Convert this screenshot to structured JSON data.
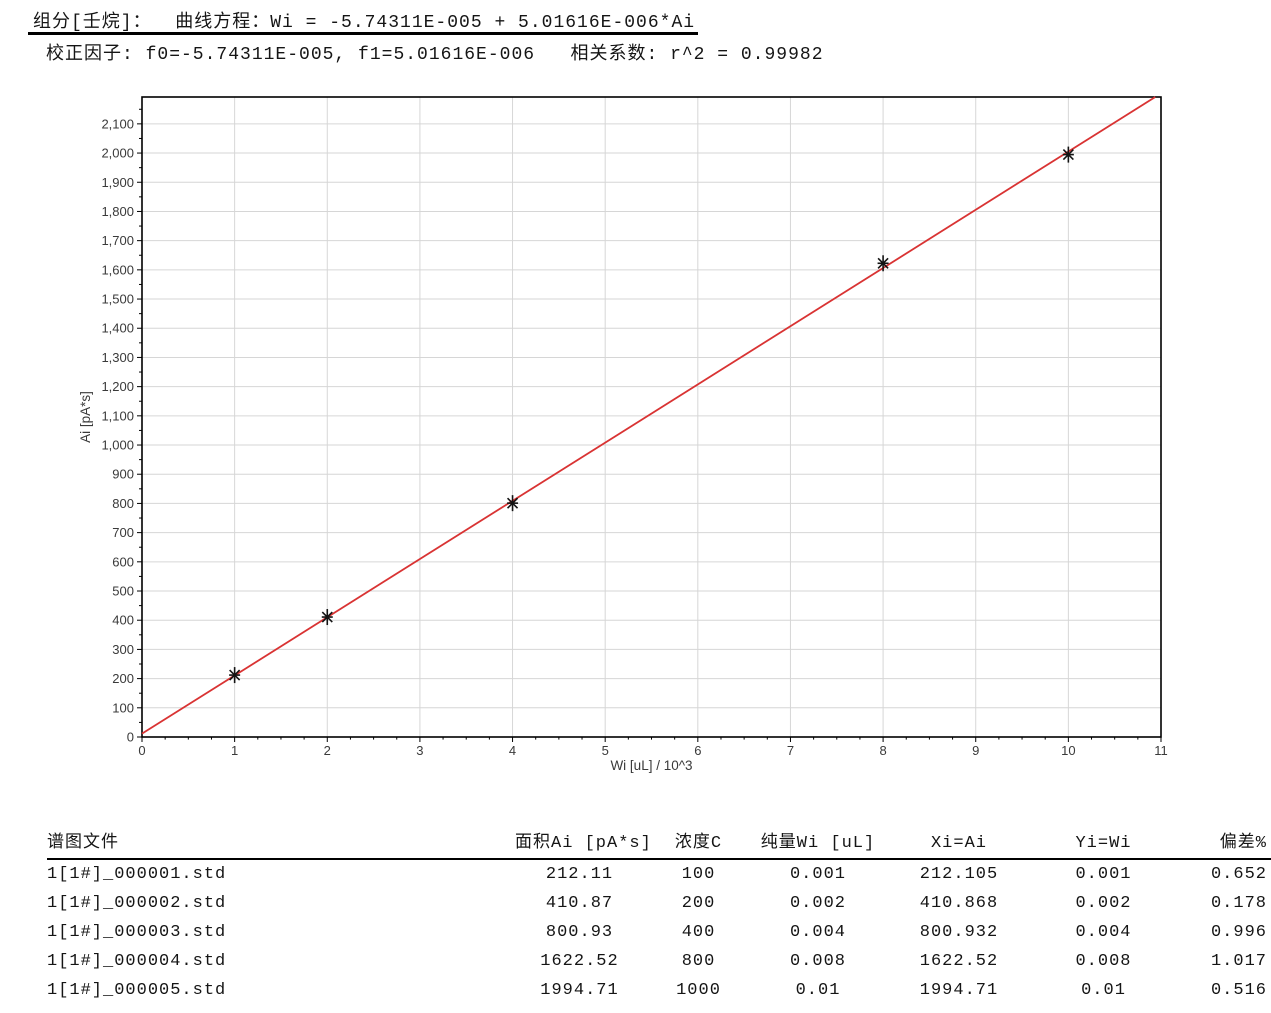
{
  "header": {
    "line1": "组分[壬烷]：  曲线方程：Wi = -5.74311E-005 + 5.01616E-006*Ai",
    "line2": "校正因子: f0=-5.74311E-005, f1=5.01616E-006   相关系数: r^2 = 0.99982"
  },
  "chart_data": {
    "type": "scatter",
    "title": "",
    "xlabel": "Wi [uL] / 10^3",
    "ylabel": "Ai [pA*s]",
    "xlim": [
      0,
      11
    ],
    "ylim": [
      0,
      2192
    ],
    "x_major_step": 1,
    "x_minor_step": 0.25,
    "y_major_step": 100,
    "y_minor_step": 50,
    "grid": true,
    "legend": "none",
    "points": [
      {
        "x": 1,
        "y": 212.105
      },
      {
        "x": 2,
        "y": 410.868
      },
      {
        "x": 4,
        "y": 800.932
      },
      {
        "x": 8,
        "y": 1622.52
      },
      {
        "x": 10,
        "y": 1994.71
      }
    ],
    "fit_line": {
      "f0": -5.74311e-05,
      "f1": 5.01616e-06,
      "wi_per_axis_unit": 0.001
    },
    "colors": {
      "line": "#d93333",
      "marker": "#141414",
      "grid": "#d6d6d6",
      "frame": "#000000",
      "tick_text": "#3a3a3a"
    }
  },
  "table": {
    "columns": [
      "谱图文件",
      "面积Ai [pA*s]",
      "浓度C",
      "纯量Wi [uL]",
      "Xi=Ai",
      "Yi=Wi",
      "偏差%"
    ],
    "rows": [
      [
        "1[1#]_000001.std",
        "212.11",
        "100",
        "0.001",
        "212.105",
        "0.001",
        "0.652"
      ],
      [
        "1[1#]_000002.std",
        "410.87",
        "200",
        "0.002",
        "410.868",
        "0.002",
        "0.178"
      ],
      [
        "1[1#]_000003.std",
        "800.93",
        "400",
        "0.004",
        "800.932",
        "0.004",
        "0.996"
      ],
      [
        "1[1#]_000004.std",
        "1622.52",
        "800",
        "0.008",
        "1622.52",
        "0.008",
        "1.017"
      ],
      [
        "1[1#]_000005.std",
        "1994.71",
        "1000",
        "0.01",
        "1994.71",
        "0.01",
        "0.516"
      ]
    ]
  }
}
